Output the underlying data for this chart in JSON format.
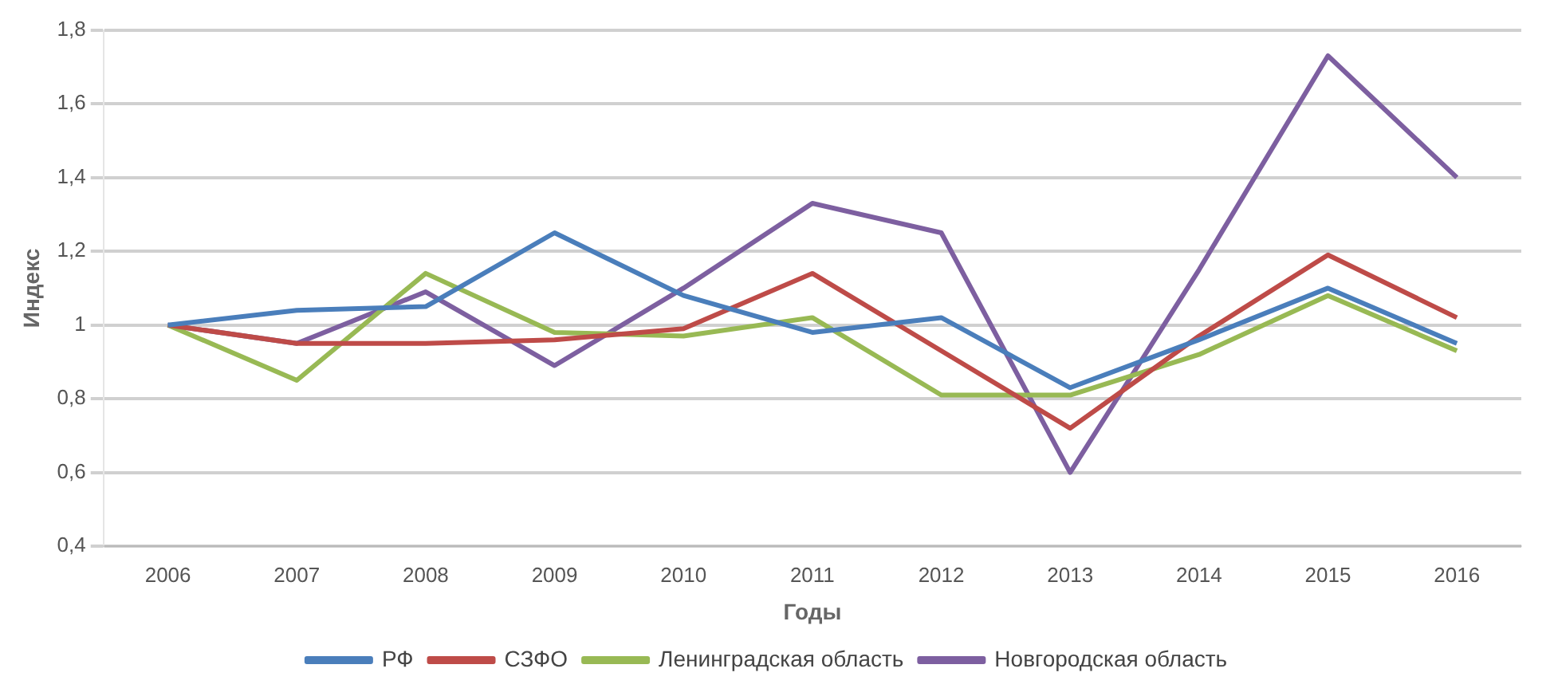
{
  "chart_data": {
    "type": "line",
    "xlabel": "Годы",
    "ylabel": "Индекс",
    "categories": [
      "2006",
      "2007",
      "2008",
      "2009",
      "2010",
      "2011",
      "2012",
      "2013",
      "2014",
      "2015",
      "2016"
    ],
    "series": [
      {
        "name": "РФ",
        "color": "#4a7ebb",
        "values": [
          1.0,
          1.04,
          1.05,
          1.25,
          1.08,
          0.98,
          1.02,
          0.83,
          0.96,
          1.1,
          0.95
        ]
      },
      {
        "name": "СЗФО",
        "color": "#be4b48",
        "values": [
          1.0,
          0.95,
          0.95,
          0.96,
          0.99,
          1.14,
          0.93,
          0.72,
          0.97,
          1.19,
          1.02
        ]
      },
      {
        "name": "Ленинградская область",
        "color": "#98b954",
        "values": [
          1.0,
          0.85,
          1.14,
          0.98,
          0.97,
          1.02,
          0.81,
          0.81,
          0.92,
          1.08,
          0.93
        ]
      },
      {
        "name": "Новгородская область",
        "color": "#7d5fa0",
        "values": [
          1.0,
          0.95,
          1.09,
          0.89,
          1.1,
          1.33,
          1.25,
          0.6,
          1.15,
          1.73,
          1.4
        ]
      }
    ],
    "ylim": [
      0.4,
      1.8
    ],
    "yticks": [
      {
        "value": 0.4,
        "label": "0,4"
      },
      {
        "value": 0.6,
        "label": "0,6"
      },
      {
        "value": 0.8,
        "label": "0,8"
      },
      1,
      {
        "value": 1.2,
        "label": "1,2"
      },
      {
        "value": 1.4,
        "label": "1,4"
      },
      {
        "value": 1.6,
        "label": "1,6"
      },
      {
        "value": 1.8,
        "label": "1,8"
      }
    ],
    "grid": "y",
    "legend": "bottom",
    "marker": "none",
    "line_style": "solid"
  }
}
